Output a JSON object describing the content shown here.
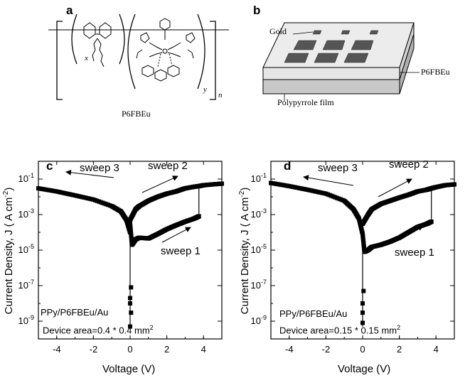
{
  "panel_a": {
    "letter": "a",
    "compound_label": "P6FBEu",
    "subscripts": {
      "x": "x",
      "y": "y",
      "n": "n"
    }
  },
  "panel_b": {
    "letter": "b",
    "labels": {
      "gold": "Gold",
      "layer": "P6FBEu",
      "film": "Polypyrrole film"
    }
  },
  "chart_data": [
    {
      "type": "scatter",
      "panel": "c",
      "xlabel": "Voltage (V)",
      "ylabel": "Current Density, J ( A cm",
      "ylabel_sup": "-2",
      "ylabel_end": ")",
      "xlim": [
        -5,
        5
      ],
      "ylog_exp": [
        -10,
        0
      ],
      "xticks": [
        "-4",
        "-2",
        "0",
        "2",
        "4"
      ],
      "yticks": [
        {
          "base": "10",
          "exp": "-1"
        },
        {
          "base": "10",
          "exp": "-3"
        },
        {
          "base": "10",
          "exp": "-5"
        },
        {
          "base": "10",
          "exp": "-7"
        },
        {
          "base": "10",
          "exp": "-9"
        }
      ],
      "sweeps": [
        {
          "name": "sweep 1",
          "points": [
            [
              0.0,
              0.0003
            ],
            [
              0.1,
              2e-05
            ],
            [
              0.3,
              4e-05
            ],
            [
              0.5,
              5e-05
            ],
            [
              1.0,
              4.5e-05
            ],
            [
              1.5,
              8e-05
            ],
            [
              2.0,
              0.00015
            ],
            [
              2.5,
              0.00025
            ],
            [
              3.0,
              0.0004
            ],
            [
              3.5,
              0.0006
            ],
            [
              3.75,
              0.0008
            ]
          ]
        },
        {
          "name": "sweep 2",
          "points": [
            [
              0.0,
              0.0005
            ],
            [
              0.3,
              0.002
            ],
            [
              0.5,
              0.003
            ],
            [
              1.0,
              0.006
            ],
            [
              1.5,
              0.01
            ],
            [
              2.0,
              0.015
            ],
            [
              2.5,
              0.02
            ],
            [
              3.0,
              0.03
            ],
            [
              3.5,
              0.037
            ],
            [
              3.75,
              0.04
            ],
            [
              4.0,
              0.045
            ],
            [
              4.5,
              0.05
            ],
            [
              5.0,
              0.055
            ]
          ]
        },
        {
          "name": "sweep 3",
          "points": [
            [
              -5.0,
              0.03
            ],
            [
              -4.0,
              0.02
            ],
            [
              -3.0,
              0.012
            ],
            [
              -2.0,
              0.007
            ],
            [
              -1.0,
              0.003
            ],
            [
              -0.5,
              0.0015
            ],
            [
              -0.2,
              0.0005
            ],
            [
              0.0,
              0.0001
            ]
          ]
        }
      ],
      "drop_points": [
        [
          0.0,
          1e-08
        ],
        [
          0.05,
          3e-09
        ],
        [
          0.0,
          5e-10
        ],
        [
          0.0,
          2e-08
        ],
        [
          0.05,
          8e-08
        ]
      ],
      "device_label": "PPy/P6FBEu/Au",
      "area_label": "Device area=0.4 * 0.4 mm",
      "area_sup": "2"
    },
    {
      "type": "scatter",
      "panel": "d",
      "xlabel": "Voltage (V)",
      "ylabel": "Current Density, J ( A cm",
      "ylabel_sup": "-2",
      "ylabel_end": ")",
      "xlim": [
        -5,
        5
      ],
      "ylog_exp": [
        -10,
        0
      ],
      "xticks": [
        "-4",
        "-2",
        "0",
        "2",
        "4"
      ],
      "yticks": [
        {
          "base": "10",
          "exp": "-1"
        },
        {
          "base": "10",
          "exp": "-3"
        },
        {
          "base": "10",
          "exp": "-5"
        },
        {
          "base": "10",
          "exp": "-7"
        },
        {
          "base": "10",
          "exp": "-9"
        }
      ],
      "sweeps": [
        {
          "name": "sweep 1",
          "points": [
            [
              0.0,
              8e-05
            ],
            [
              0.1,
              8e-06
            ],
            [
              0.3,
              1e-05
            ],
            [
              0.5,
              1.5e-05
            ],
            [
              1.0,
              2e-05
            ],
            [
              1.5,
              3e-05
            ],
            [
              2.0,
              5e-05
            ],
            [
              2.5,
              0.0001
            ],
            [
              3.0,
              0.0002
            ],
            [
              3.5,
              0.0003
            ],
            [
              3.75,
              0.0004
            ]
          ]
        },
        {
          "name": "sweep 2",
          "points": [
            [
              0.0,
              0.0003
            ],
            [
              0.3,
              0.001
            ],
            [
              0.5,
              0.002
            ],
            [
              1.0,
              0.004
            ],
            [
              1.5,
              0.006
            ],
            [
              2.0,
              0.009
            ],
            [
              2.5,
              0.013
            ],
            [
              3.0,
              0.02
            ],
            [
              3.5,
              0.025
            ],
            [
              3.75,
              0.03
            ],
            [
              4.0,
              0.035
            ],
            [
              4.5,
              0.045
            ],
            [
              5.0,
              0.05
            ]
          ]
        },
        {
          "name": "sweep 3",
          "points": [
            [
              -5.0,
              0.06
            ],
            [
              -4.0,
              0.04
            ],
            [
              -3.0,
              0.025
            ],
            [
              -2.0,
              0.015
            ],
            [
              -1.0,
              0.006
            ],
            [
              -0.5,
              0.002
            ],
            [
              -0.2,
              0.0006
            ],
            [
              0.0,
              8e-05
            ]
          ]
        }
      ],
      "drop_points": [
        [
          0.0,
          1e-08
        ],
        [
          0.0,
          3e-09
        ],
        [
          0.0,
          8e-10
        ],
        [
          0.05,
          5e-08
        ]
      ],
      "device_label": "PPy/P6FBEu/Au",
      "area_label": "Device area=0.15 * 0.15 mm",
      "area_sup": "2"
    }
  ]
}
